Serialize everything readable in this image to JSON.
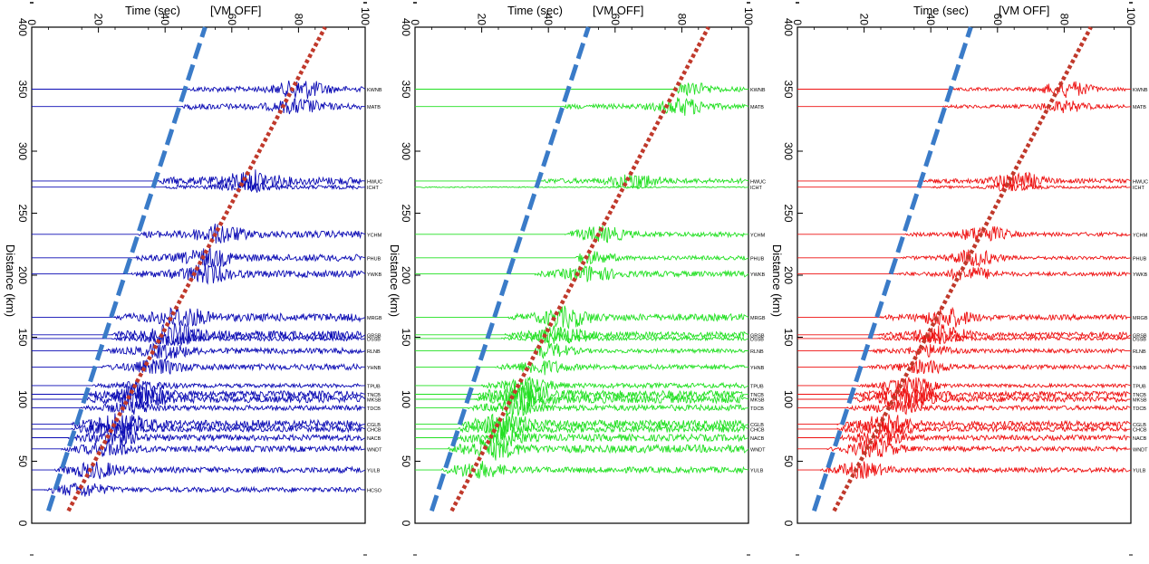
{
  "header": {
    "time_label": "Time (sec)",
    "vm_label": "[VM OFF]"
  },
  "chart_data": [
    {
      "type": "line",
      "panel": "left",
      "trace_color": "#0b0bb4",
      "xlabel": "Time (sec)",
      "xlabel_extra": "[VM OFF]",
      "ylabel": "Distance (km)",
      "xlim": [
        0,
        100
      ],
      "ylim": [
        0,
        400
      ],
      "x_ticks": [
        0,
        20,
        40,
        60,
        80,
        100
      ],
      "y_ticks": [
        0,
        50,
        100,
        150,
        200,
        250,
        300,
        350,
        400
      ],
      "first_arrival_line": {
        "color": "#3a7bc8",
        "style": "dashed",
        "from": [
          5,
          10
        ],
        "to": [
          52,
          400
        ]
      },
      "second_arrival_line": {
        "color": "#c0392b",
        "style": "dotted",
        "from": [
          11,
          10
        ],
        "to": [
          88,
          400
        ]
      },
      "stations": [
        {
          "name": "KWNB",
          "distance": 350,
          "onset": 47,
          "amp": 0.55,
          "burst_time": 81,
          "burst_amp": 1.0
        },
        {
          "name": "MATB",
          "distance": 336,
          "onset": 45,
          "amp": 0.6,
          "burst_time": 80,
          "burst_amp": 0.7
        },
        {
          "name": "HWUC",
          "distance": 276,
          "onset": 38,
          "amp": 0.8,
          "burst_time": 66,
          "burst_amp": 1.0
        },
        {
          "name": "ICHT",
          "distance": 271,
          "onset": 40,
          "amp": 0.4,
          "burst_time": 64,
          "burst_amp": 0.5
        },
        {
          "name": "YCHM",
          "distance": 233,
          "onset": 32,
          "amp": 0.7,
          "burst_time": 56,
          "burst_amp": 0.9
        },
        {
          "name": "PHUB",
          "distance": 214,
          "onset": 31,
          "amp": 0.7,
          "burst_time": 53,
          "burst_amp": 0.9
        },
        {
          "name": "YWKB",
          "distance": 201,
          "onset": 30,
          "amp": 0.7,
          "burst_time": 52,
          "burst_amp": 0.9
        },
        {
          "name": "MRGB",
          "distance": 166,
          "onset": 25,
          "amp": 0.8,
          "burst_time": 45,
          "burst_amp": 1.0
        },
        {
          "name": "GRSB",
          "distance": 152,
          "onset": 24,
          "amp": 0.8,
          "burst_time": 43,
          "burst_amp": 1.0
        },
        {
          "name": "DSSB",
          "distance": 149,
          "onset": 24,
          "amp": 0.5,
          "burst_time": 42,
          "burst_amp": 0.6
        },
        {
          "name": "RLNB",
          "distance": 139,
          "onset": 22,
          "amp": 0.6,
          "burst_time": 40,
          "burst_amp": 0.7
        },
        {
          "name": "YHNB",
          "distance": 126,
          "onset": 21,
          "amp": 0.6,
          "burst_time": 38,
          "burst_amp": 0.7
        },
        {
          "name": "TPUB",
          "distance": 111,
          "onset": 18,
          "amp": 0.4,
          "burst_time": 34,
          "burst_amp": 0.5
        },
        {
          "name": "TNCB",
          "distance": 104,
          "onset": 17,
          "amp": 0.7,
          "burst_time": 33,
          "burst_amp": 0.9
        },
        {
          "name": "MKSB",
          "distance": 100,
          "onset": 16,
          "amp": 0.7,
          "burst_time": 32,
          "burst_amp": 0.9
        },
        {
          "name": "TDCB",
          "distance": 93,
          "onset": 15,
          "amp": 0.5,
          "burst_time": 30,
          "burst_amp": 0.6
        },
        {
          "name": "CGLB",
          "distance": 80,
          "onset": 12,
          "amp": 0.8,
          "burst_time": 27,
          "burst_amp": 1.0
        },
        {
          "name": "CHCB",
          "distance": 76,
          "onset": 12,
          "amp": 0.6,
          "burst_time": 26,
          "burst_amp": 0.7
        },
        {
          "name": "NACB",
          "distance": 69,
          "onset": 11,
          "amp": 0.6,
          "burst_time": 25,
          "burst_amp": 0.7
        },
        {
          "name": "WNDT",
          "distance": 60,
          "onset": 9,
          "amp": 0.6,
          "burst_time": 23,
          "burst_amp": 0.7
        },
        {
          "name": "YULB",
          "distance": 43,
          "onset": 7,
          "amp": 0.6,
          "burst_time": 19,
          "burst_amp": 0.8
        },
        {
          "name": "HCSO",
          "distance": 27,
          "onset": 4,
          "amp": 0.5,
          "burst_time": 15,
          "burst_amp": 0.7
        }
      ]
    },
    {
      "type": "line",
      "panel": "middle",
      "trace_color": "#22e022",
      "xlabel": "Time (sec)",
      "xlabel_extra": "[VM OFF]",
      "ylabel": "Distance (km)",
      "xlim": [
        0,
        100
      ],
      "ylim": [
        0,
        400
      ],
      "x_ticks": [
        0,
        20,
        40,
        60,
        80,
        100
      ],
      "y_ticks": [
        0,
        50,
        100,
        150,
        200,
        250,
        300,
        350,
        400
      ],
      "first_arrival_line": {
        "color": "#3a7bc8",
        "style": "dashed",
        "from": [
          5,
          10
        ],
        "to": [
          52,
          400
        ]
      },
      "second_arrival_line": {
        "color": "#c0392b",
        "style": "dotted",
        "from": [
          11,
          10
        ],
        "to": [
          88,
          400
        ]
      },
      "stations": [
        {
          "name": "KWNB",
          "distance": 350,
          "onset": 78,
          "amp": 0.5,
          "burst_time": 81,
          "burst_amp": 0.8
        },
        {
          "name": "MATB",
          "distance": 336,
          "onset": 44,
          "amp": 0.5,
          "burst_time": 80,
          "burst_amp": 0.9
        },
        {
          "name": "HWUC",
          "distance": 276,
          "onset": 38,
          "amp": 0.5,
          "burst_time": 66,
          "burst_amp": 0.8
        },
        {
          "name": "ICHT",
          "distance": 271,
          "onset": 0,
          "amp": 0.1,
          "burst_time": 64,
          "burst_amp": 0.1
        },
        {
          "name": "YCHM",
          "distance": 233,
          "onset": 45,
          "amp": 0.5,
          "burst_time": 56,
          "burst_amp": 0.8
        },
        {
          "name": "PHUB",
          "distance": 214,
          "onset": 48,
          "amp": 0.4,
          "burst_time": 53,
          "burst_amp": 0.6
        },
        {
          "name": "YWKB",
          "distance": 201,
          "onset": 36,
          "amp": 0.6,
          "burst_time": 52,
          "burst_amp": 0.8
        },
        {
          "name": "MRGB",
          "distance": 166,
          "onset": 28,
          "amp": 0.7,
          "burst_time": 45,
          "burst_amp": 1.0
        },
        {
          "name": "GRSB",
          "distance": 152,
          "onset": 27,
          "amp": 0.6,
          "burst_time": 43,
          "burst_amp": 0.9
        },
        {
          "name": "DSSB",
          "distance": 149,
          "onset": 26,
          "amp": 0.4,
          "burst_time": 42,
          "burst_amp": 0.5
        },
        {
          "name": "RLNB",
          "distance": 139,
          "onset": 36,
          "amp": 0.4,
          "burst_time": 40,
          "burst_amp": 0.8
        },
        {
          "name": "YHNB",
          "distance": 126,
          "onset": 24,
          "amp": 0.5,
          "burst_time": 38,
          "burst_amp": 0.7
        },
        {
          "name": "TPUB",
          "distance": 111,
          "onset": 20,
          "amp": 0.5,
          "burst_time": 34,
          "burst_amp": 0.8
        },
        {
          "name": "TNCB",
          "distance": 104,
          "onset": 19,
          "amp": 0.8,
          "burst_time": 33,
          "burst_amp": 1.0
        },
        {
          "name": "MKSB",
          "distance": 100,
          "onset": 18,
          "amp": 0.8,
          "burst_time": 32,
          "burst_amp": 1.0
        },
        {
          "name": "TDCB",
          "distance": 93,
          "onset": 16,
          "amp": 0.6,
          "burst_time": 30,
          "burst_amp": 0.7
        },
        {
          "name": "CGLB",
          "distance": 80,
          "onset": 14,
          "amp": 0.8,
          "burst_time": 27,
          "burst_amp": 1.0
        },
        {
          "name": "CHCB",
          "distance": 76,
          "onset": 13,
          "amp": 0.7,
          "burst_time": 26,
          "burst_amp": 0.9
        },
        {
          "name": "NACB",
          "distance": 69,
          "onset": 12,
          "amp": 0.7,
          "burst_time": 25,
          "burst_amp": 0.9
        },
        {
          "name": "WNDT",
          "distance": 60,
          "onset": 10,
          "amp": 0.8,
          "burst_time": 23,
          "burst_amp": 1.0
        },
        {
          "name": "YULB",
          "distance": 43,
          "onset": 8,
          "amp": 0.6,
          "burst_time": 19,
          "burst_amp": 0.8
        }
      ]
    },
    {
      "type": "line",
      "panel": "right",
      "trace_color": "#ee1111",
      "xlabel": "Time (sec)",
      "xlabel_extra": "[VM OFF]",
      "ylabel": "Distance (km)",
      "xlim": [
        0,
        100
      ],
      "ylim": [
        0,
        400
      ],
      "x_ticks": [
        0,
        20,
        40,
        60,
        80,
        100
      ],
      "y_ticks": [
        0,
        50,
        100,
        150,
        200,
        250,
        300,
        350,
        400
      ],
      "first_arrival_line": {
        "color": "#3a7bc8",
        "style": "dashed",
        "from": [
          5,
          10
        ],
        "to": [
          52,
          400
        ]
      },
      "second_arrival_line": {
        "color": "#c0392b",
        "style": "dotted",
        "from": [
          11,
          10
        ],
        "to": [
          88,
          400
        ]
      },
      "stations": [
        {
          "name": "KWNB",
          "distance": 350,
          "onset": 47,
          "amp": 0.35,
          "burst_time": 81,
          "burst_amp": 0.9
        },
        {
          "name": "MATB",
          "distance": 336,
          "onset": 44,
          "amp": 0.35,
          "burst_time": 80,
          "burst_amp": 0.6
        },
        {
          "name": "HWUC",
          "distance": 276,
          "onset": 38,
          "amp": 0.45,
          "burst_time": 66,
          "burst_amp": 1.0
        },
        {
          "name": "ICHT",
          "distance": 271,
          "onset": 40,
          "amp": 0.25,
          "burst_time": 64,
          "burst_amp": 0.4
        },
        {
          "name": "YCHM",
          "distance": 233,
          "onset": 32,
          "amp": 0.4,
          "burst_time": 56,
          "burst_amp": 0.9
        },
        {
          "name": "PHUB",
          "distance": 214,
          "onset": 31,
          "amp": 0.35,
          "burst_time": 53,
          "burst_amp": 0.9
        },
        {
          "name": "YWKB",
          "distance": 201,
          "onset": 30,
          "amp": 0.4,
          "burst_time": 52,
          "burst_amp": 0.7
        },
        {
          "name": "MRGB",
          "distance": 166,
          "onset": 25,
          "amp": 0.55,
          "burst_time": 45,
          "burst_amp": 1.0
        },
        {
          "name": "GRSB",
          "distance": 152,
          "onset": 24,
          "amp": 0.55,
          "burst_time": 43,
          "burst_amp": 1.0
        },
        {
          "name": "DSSB",
          "distance": 149,
          "onset": 24,
          "amp": 0.35,
          "burst_time": 42,
          "burst_amp": 0.5
        },
        {
          "name": "RLNB",
          "distance": 139,
          "onset": 22,
          "amp": 0.4,
          "burst_time": 40,
          "burst_amp": 0.6
        },
        {
          "name": "YHNB",
          "distance": 126,
          "onset": 21,
          "amp": 0.45,
          "burst_time": 38,
          "burst_amp": 0.7
        },
        {
          "name": "TPUB",
          "distance": 111,
          "onset": 18,
          "amp": 0.35,
          "burst_time": 34,
          "burst_amp": 0.9
        },
        {
          "name": "TNCB",
          "distance": 104,
          "onset": 17,
          "amp": 0.6,
          "burst_time": 33,
          "burst_amp": 1.0
        },
        {
          "name": "MKSB",
          "distance": 100,
          "onset": 16,
          "amp": 0.6,
          "burst_time": 32,
          "burst_amp": 1.0
        },
        {
          "name": "TDCB",
          "distance": 93,
          "onset": 15,
          "amp": 0.45,
          "burst_time": 30,
          "burst_amp": 0.6
        },
        {
          "name": "CGLB",
          "distance": 80,
          "onset": 12,
          "amp": 0.6,
          "burst_time": 27,
          "burst_amp": 1.0
        },
        {
          "name": "CHCB",
          "distance": 76,
          "onset": 12,
          "amp": 0.5,
          "burst_time": 26,
          "burst_amp": 0.8
        },
        {
          "name": "NACB",
          "distance": 69,
          "onset": 11,
          "amp": 0.5,
          "burst_time": 25,
          "burst_amp": 0.8
        },
        {
          "name": "WNDT",
          "distance": 60,
          "onset": 9,
          "amp": 0.5,
          "burst_time": 23,
          "burst_amp": 0.9
        },
        {
          "name": "YULB",
          "distance": 43,
          "onset": 7,
          "amp": 0.5,
          "burst_time": 19,
          "burst_amp": 0.8
        }
      ]
    }
  ]
}
